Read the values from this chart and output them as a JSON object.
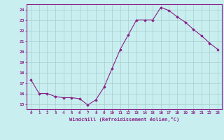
{
  "x": [
    0,
    1,
    2,
    3,
    4,
    5,
    6,
    7,
    8,
    9,
    10,
    11,
    12,
    13,
    14,
    15,
    16,
    17,
    18,
    19,
    20,
    21,
    22,
    23
  ],
  "y": [
    17.3,
    16.0,
    16.0,
    15.7,
    15.6,
    15.6,
    15.5,
    14.9,
    15.4,
    16.6,
    18.4,
    20.2,
    21.6,
    23.0,
    23.0,
    23.0,
    24.2,
    23.9,
    23.3,
    22.8,
    22.1,
    21.5,
    20.8,
    20.2
  ],
  "line_color": "#882288",
  "marker": "D",
  "marker_size": 1.8,
  "bg_color": "#c8eef0",
  "grid_color": "#aacccc",
  "ylim": [
    14.5,
    24.5
  ],
  "yticks": [
    15,
    16,
    17,
    18,
    19,
    20,
    21,
    22,
    23,
    24
  ],
  "xlabel": "Windchill (Refroidissement éolien,°C)",
  "axis_color": "#882288",
  "tick_label_color": "#882288",
  "xlabel_color": "#882288",
  "linewidth": 0.8
}
